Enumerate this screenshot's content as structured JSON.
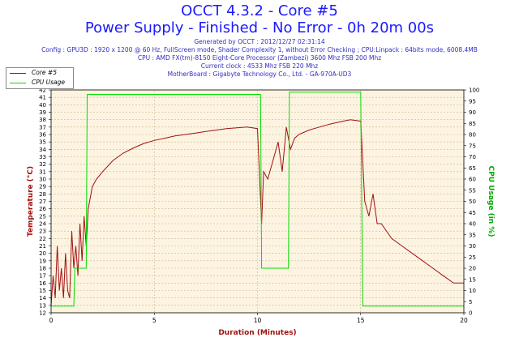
{
  "title_line1": "OCCT 4.3.2 - Core #5",
  "title_line2": "Power Supply - Finished - No Error - 0h 20m 00s",
  "info": [
    "Generated by OCCT : 2012/12/27 02:31:14",
    "Config : GPU3D : 1920 x 1200 @ 60 Hz, FullScreen mode, Shader Complexity 1, without Error Checking ; CPU:Linpack : 64bits mode, 6008.4MB",
    "CPU : AMD FX(tm)-8150 Eight-Core Processor (Zambezi) 3600 Mhz FSB 200 Mhz",
    "Current clock : 4533 Mhz FSB 220 Mhz",
    "MotherBoard : Gigabyte Technology Co., Ltd. - GA-970A-UD3"
  ],
  "colors": {
    "title": "#1a1aff",
    "core": "#a01010",
    "cpu": "#00dd00",
    "plot_bg": "#fdf3e1",
    "grid": "#c8b48c",
    "label": "#a01010",
    "label_right": "#00aa00"
  },
  "chart_data": {
    "type": "line",
    "xlabel": "Duration (Minutes)",
    "ylabel_left": "Temperature (°C)",
    "ylabel_right": "CPU Usage (in %)",
    "xlim": [
      0,
      20
    ],
    "ylim_left": [
      12,
      42
    ],
    "ylim_right": [
      0,
      100
    ],
    "x_ticks": [
      0,
      5,
      10,
      15,
      20
    ],
    "y_ticks_left": [
      12,
      13,
      14,
      15,
      16,
      17,
      18,
      19,
      20,
      21,
      22,
      23,
      24,
      25,
      26,
      27,
      28,
      29,
      30,
      31,
      32,
      33,
      34,
      35,
      36,
      37,
      38,
      39,
      40,
      41,
      42
    ],
    "y_ticks_right": [
      0,
      5,
      10,
      15,
      20,
      25,
      30,
      35,
      40,
      45,
      50,
      55,
      60,
      65,
      70,
      75,
      80,
      85,
      90,
      95,
      100
    ],
    "legend": [
      "Core #5",
      "CPU Usage"
    ],
    "series": [
      {
        "name": "Core #5",
        "axis": "left",
        "x": [
          0,
          0.1,
          0.2,
          0.3,
          0.4,
          0.5,
          0.6,
          0.7,
          0.8,
          0.9,
          1.0,
          1.1,
          1.2,
          1.3,
          1.4,
          1.5,
          1.6,
          1.7,
          1.8,
          2.0,
          2.2,
          2.5,
          3.0,
          3.5,
          4.0,
          4.5,
          5.0,
          5.5,
          6.0,
          6.5,
          7.0,
          7.5,
          8.0,
          8.5,
          9.0,
          9.5,
          10.0,
          10.2,
          10.3,
          10.5,
          10.8,
          11.0,
          11.2,
          11.4,
          11.6,
          11.8,
          12.0,
          12.5,
          13.0,
          13.5,
          14.0,
          14.5,
          15.0,
          15.2,
          15.4,
          15.6,
          15.8,
          16.0,
          16.5,
          17.0,
          17.5,
          18.0,
          18.5,
          19.0,
          19.5,
          20.0
        ],
        "values": [
          13,
          17,
          14,
          21,
          15,
          18,
          14,
          20,
          15,
          14,
          23,
          18,
          21,
          17,
          24,
          19,
          25,
          21,
          26,
          29,
          30,
          31,
          32.5,
          33.5,
          34.2,
          34.8,
          35.2,
          35.5,
          35.8,
          36.0,
          36.2,
          36.4,
          36.6,
          36.8,
          36.9,
          37.0,
          36.8,
          24,
          31,
          30,
          33,
          35,
          31,
          37,
          34,
          35.5,
          36,
          36.6,
          37.0,
          37.4,
          37.7,
          38.0,
          37.8,
          27,
          25,
          28,
          24,
          24,
          22,
          21,
          20,
          19,
          18,
          17,
          16,
          16
        ]
      },
      {
        "name": "CPU Usage",
        "axis": "right",
        "x": [
          0,
          1.1,
          1.15,
          1.7,
          1.75,
          10.15,
          10.2,
          11.5,
          11.55,
          15.0,
          15.1,
          20.0
        ],
        "values": [
          3,
          3,
          20,
          20,
          98,
          98,
          20,
          20,
          99,
          99,
          3,
          3
        ]
      }
    ]
  }
}
